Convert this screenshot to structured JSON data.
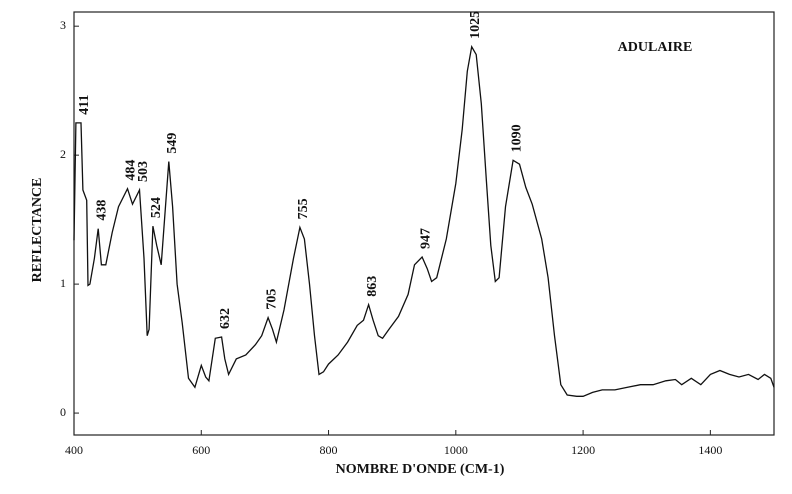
{
  "chart_data": {
    "type": "line",
    "title": "ADULAIRE",
    "xlabel": "NOMBRE D'ONDE (CM-1)",
    "ylabel": "REFLECTANCE",
    "x": [
      400,
      403,
      411,
      414,
      420,
      422,
      425,
      432,
      438,
      443,
      450,
      460,
      470,
      484,
      492,
      503,
      510,
      515,
      518,
      524,
      530,
      537,
      549,
      555,
      562,
      570,
      580,
      590,
      600,
      607,
      612,
      622,
      632,
      637,
      643,
      655,
      670,
      685,
      695,
      705,
      712,
      718,
      730,
      745,
      755,
      762,
      770,
      778,
      785,
      792,
      800,
      815,
      830,
      845,
      855,
      863,
      870,
      878,
      885,
      895,
      910,
      925,
      935,
      947,
      955,
      962,
      970,
      985,
      1000,
      1010,
      1018,
      1025,
      1032,
      1040,
      1048,
      1055,
      1062,
      1068,
      1078,
      1090,
      1100,
      1110,
      1120,
      1135,
      1145,
      1155,
      1165,
      1175,
      1190,
      1200,
      1215,
      1230,
      1250,
      1270,
      1290,
      1310,
      1330,
      1345,
      1355,
      1370,
      1385,
      1400,
      1415,
      1430,
      1445,
      1460,
      1475,
      1485,
      1495,
      1500
    ],
    "values": [
      1.34,
      2.25,
      2.25,
      1.73,
      1.65,
      0.99,
      1.0,
      1.2,
      1.43,
      1.15,
      1.15,
      1.4,
      1.6,
      1.74,
      1.62,
      1.73,
      1.2,
      0.6,
      0.65,
      1.45,
      1.3,
      1.15,
      1.95,
      1.6,
      1.0,
      0.7,
      0.27,
      0.2,
      0.37,
      0.28,
      0.25,
      0.58,
      0.59,
      0.42,
      0.3,
      0.42,
      0.45,
      0.53,
      0.6,
      0.74,
      0.65,
      0.55,
      0.8,
      1.2,
      1.44,
      1.35,
      1.0,
      0.6,
      0.3,
      0.32,
      0.38,
      0.45,
      0.55,
      0.68,
      0.72,
      0.84,
      0.72,
      0.6,
      0.58,
      0.65,
      0.75,
      0.92,
      1.15,
      1.21,
      1.12,
      1.02,
      1.05,
      1.35,
      1.78,
      2.2,
      2.65,
      2.84,
      2.78,
      2.4,
      1.8,
      1.3,
      1.02,
      1.05,
      1.6,
      1.96,
      1.93,
      1.75,
      1.62,
      1.35,
      1.05,
      0.6,
      0.22,
      0.14,
      0.13,
      0.13,
      0.16,
      0.18,
      0.18,
      0.2,
      0.22,
      0.22,
      0.25,
      0.26,
      0.22,
      0.27,
      0.22,
      0.3,
      0.33,
      0.3,
      0.28,
      0.3,
      0.26,
      0.3,
      0.27,
      0.2
    ],
    "color": "#111111",
    "peaks": [
      411,
      438,
      484,
      503,
      524,
      549,
      632,
      705,
      755,
      863,
      947,
      1025,
      1090
    ],
    "xlim": [
      400,
      1500
    ],
    "xticks": [
      400,
      600,
      800,
      1000,
      1200,
      1400
    ],
    "ylim": [
      -0.17,
      3.11
    ],
    "yticks": [
      0,
      1,
      2,
      3
    ]
  }
}
